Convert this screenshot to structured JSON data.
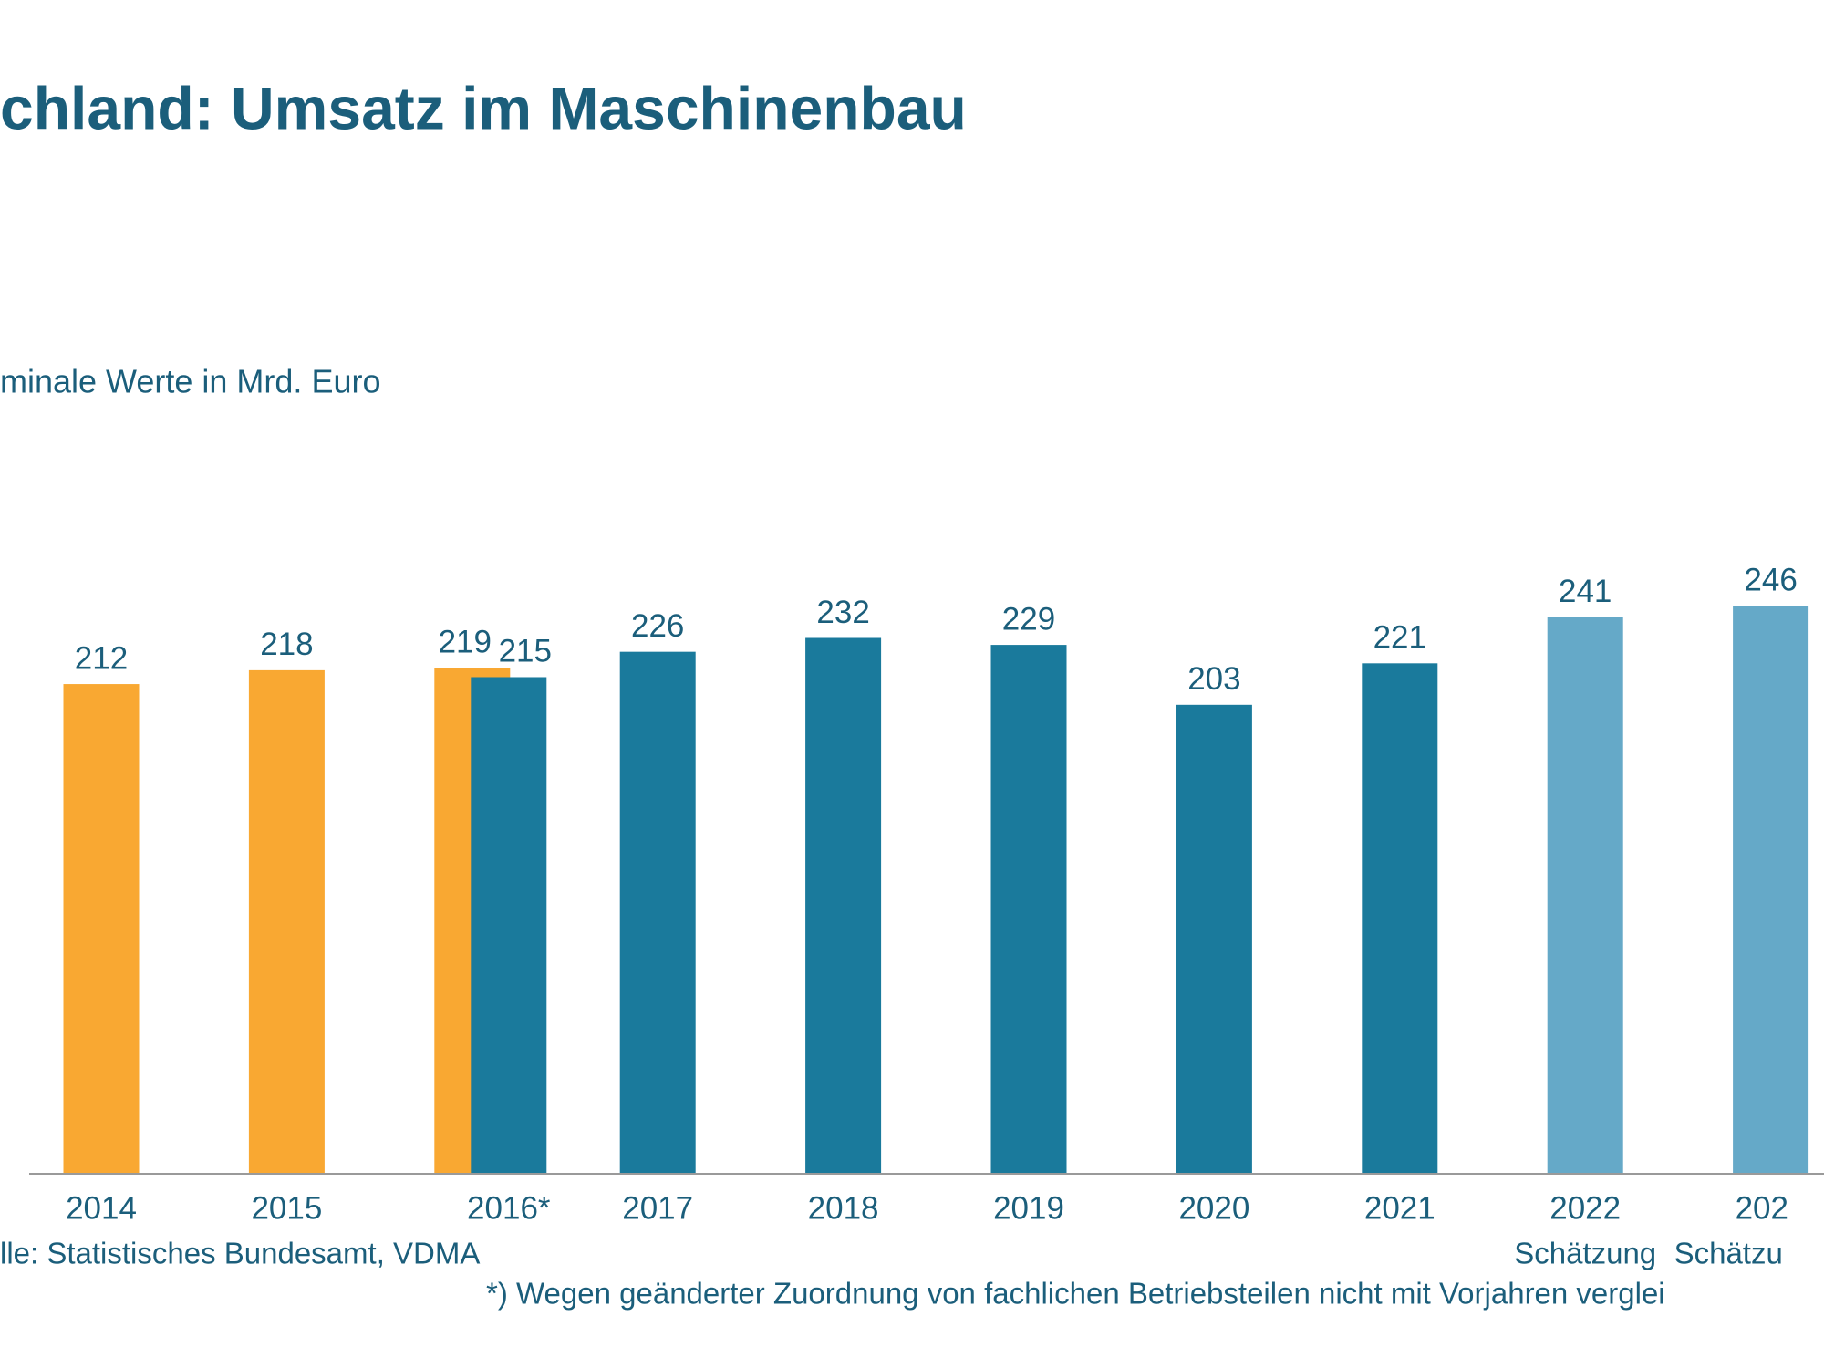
{
  "chart_data": {
    "type": "bar",
    "title": "chland: Umsatz im Maschinenbau",
    "subtitle": "minale Werte in Mrd. Euro",
    "categories": [
      "2014",
      "2015",
      "2016*",
      "2017",
      "2018",
      "2019",
      "2020",
      "2021",
      "2022",
      "202"
    ],
    "series": [
      {
        "color": "#f9a832",
        "values": [
          212,
          218,
          219,
          null,
          null,
          null,
          null,
          null,
          null,
          null
        ]
      },
      {
        "color": "#1a7a9c",
        "values": [
          null,
          null,
          215,
          226,
          232,
          229,
          203,
          221,
          null,
          null
        ]
      },
      {
        "color": "#65a9c8",
        "values": [
          null,
          null,
          null,
          null,
          null,
          null,
          null,
          null,
          241,
          246
        ]
      }
    ],
    "ylim": [
      0,
      250
    ],
    "source": "lle: Statistisches Bundesamt, VDMA",
    "estimate_notes": [
      "Schätzung",
      "Schätzu"
    ],
    "footnote": "*) Wegen geänderter Zuordnung von fachlichen Betriebsteilen nicht mit Vorjahren verglei"
  }
}
